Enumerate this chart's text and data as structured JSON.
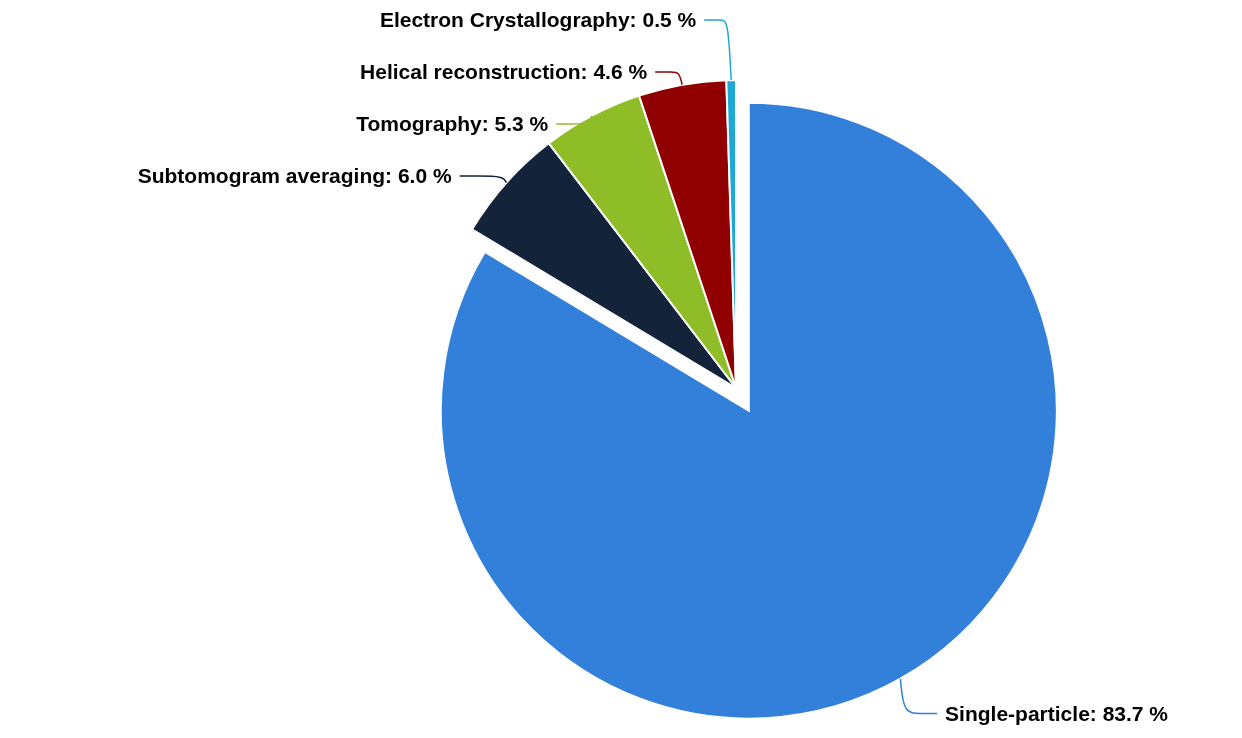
{
  "chart_data": {
    "type": "pie",
    "categories": [
      "Single-particle",
      "Subtomogram averaging",
      "Tomography",
      "Helical reconstruction",
      "Electron Crystallography"
    ],
    "values": [
      83.7,
      6.0,
      5.3,
      4.6,
      0.5
    ],
    "value_labels": [
      "83.7 %",
      "6.0 %",
      "5.3 %",
      "4.6 %",
      "0.5 %"
    ],
    "colors": [
      "#3380db",
      "#12233a",
      "#8ebd27",
      "#900000",
      "#1ea8d6"
    ]
  }
}
